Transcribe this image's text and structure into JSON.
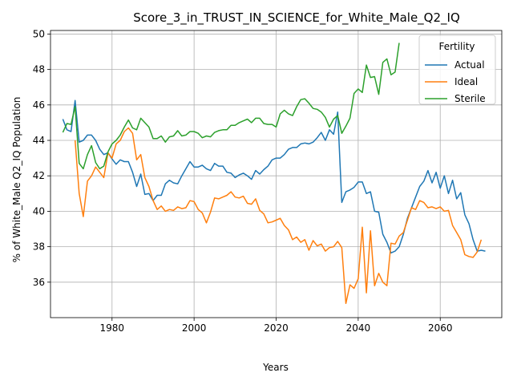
{
  "chart_data": {
    "type": "line",
    "title": "Score_3_in_TRUST_IN_SCIENCE_for_White_Male_Q2_IQ",
    "xlabel": "Years",
    "ylabel": "% of White_Male Q2_IQ Population",
    "xlim": [
      1965,
      2075
    ],
    "ylim": [
      34.0,
      50.2
    ],
    "xticks": [
      1980,
      2000,
      2020,
      2040,
      2060
    ],
    "yticks": [
      36,
      38,
      40,
      42,
      44,
      46,
      48,
      50
    ],
    "grid": true,
    "legend": {
      "title": "Fertility",
      "position": "top-right"
    },
    "series": [
      {
        "name": "Actual",
        "color": "#1f77b4",
        "points": [
          [
            1968,
            45.2
          ],
          [
            1969,
            44.6
          ],
          [
            1970,
            44.5
          ],
          [
            1971,
            46.25
          ],
          [
            1972,
            43.9
          ],
          [
            1973,
            44.0
          ],
          [
            1974,
            44.3
          ],
          [
            1975,
            44.3
          ],
          [
            1976,
            44.0
          ],
          [
            1977,
            43.5
          ],
          [
            1978,
            43.2
          ],
          [
            1979,
            43.3
          ],
          [
            1980,
            42.95
          ],
          [
            1981,
            42.65
          ],
          [
            1982,
            42.9
          ],
          [
            1983,
            42.8
          ],
          [
            1984,
            42.8
          ],
          [
            1985,
            42.2
          ],
          [
            1986,
            41.4
          ],
          [
            1987,
            42.1
          ],
          [
            1988,
            40.95
          ],
          [
            1989,
            41.0
          ],
          [
            1990,
            40.6
          ],
          [
            1991,
            40.9
          ],
          [
            1992,
            40.9
          ],
          [
            1993,
            41.55
          ],
          [
            1994,
            41.75
          ],
          [
            1995,
            41.6
          ],
          [
            1996,
            41.55
          ],
          [
            1997,
            42.0
          ],
          [
            1998,
            42.4
          ],
          [
            1999,
            42.8
          ],
          [
            2000,
            42.5
          ],
          [
            2001,
            42.5
          ],
          [
            2002,
            42.6
          ],
          [
            2003,
            42.4
          ],
          [
            2004,
            42.3
          ],
          [
            2005,
            42.7
          ],
          [
            2006,
            42.55
          ],
          [
            2007,
            42.55
          ],
          [
            2008,
            42.2
          ],
          [
            2009,
            42.15
          ],
          [
            2010,
            41.9
          ],
          [
            2011,
            42.05
          ],
          [
            2012,
            42.15
          ],
          [
            2013,
            42.0
          ],
          [
            2014,
            41.8
          ],
          [
            2015,
            42.3
          ],
          [
            2016,
            42.1
          ],
          [
            2017,
            42.35
          ],
          [
            2018,
            42.55
          ],
          [
            2019,
            42.9
          ],
          [
            2020,
            43.0
          ],
          [
            2021,
            43.0
          ],
          [
            2022,
            43.2
          ],
          [
            2023,
            43.5
          ],
          [
            2024,
            43.6
          ],
          [
            2025,
            43.6
          ],
          [
            2026,
            43.8
          ],
          [
            2027,
            43.85
          ],
          [
            2028,
            43.8
          ],
          [
            2029,
            43.9
          ],
          [
            2030,
            44.15
          ],
          [
            2031,
            44.45
          ],
          [
            2032,
            44.0
          ],
          [
            2033,
            44.6
          ],
          [
            2034,
            44.35
          ],
          [
            2035,
            45.6
          ],
          [
            2036,
            40.5
          ],
          [
            2037,
            41.1
          ],
          [
            2038,
            41.2
          ],
          [
            2039,
            41.35
          ],
          [
            2040,
            41.65
          ],
          [
            2041,
            41.65
          ],
          [
            2042,
            41.0
          ],
          [
            2043,
            41.1
          ],
          [
            2044,
            40.0
          ],
          [
            2045,
            39.95
          ],
          [
            2046,
            38.7
          ],
          [
            2047,
            38.25
          ],
          [
            2048,
            37.65
          ],
          [
            2049,
            37.75
          ],
          [
            2050,
            38.0
          ],
          [
            2051,
            38.7
          ],
          [
            2052,
            39.6
          ],
          [
            2053,
            40.2
          ],
          [
            2054,
            40.8
          ],
          [
            2055,
            41.4
          ],
          [
            2056,
            41.7
          ],
          [
            2057,
            42.3
          ],
          [
            2058,
            41.6
          ],
          [
            2059,
            42.2
          ],
          [
            2060,
            41.3
          ],
          [
            2061,
            42.0
          ],
          [
            2062,
            41.0
          ],
          [
            2063,
            41.75
          ],
          [
            2064,
            40.7
          ],
          [
            2065,
            41.05
          ],
          [
            2066,
            39.8
          ],
          [
            2067,
            39.3
          ],
          [
            2068,
            38.4
          ],
          [
            2069,
            37.75
          ],
          [
            2070,
            37.8
          ],
          [
            2071,
            37.75
          ]
        ]
      },
      {
        "name": "Ideal",
        "color": "#ff7f0e",
        "points": [
          [
            1971,
            44.0
          ],
          [
            1972,
            41.0
          ],
          [
            1973,
            39.7
          ],
          [
            1974,
            41.7
          ],
          [
            1975,
            42.0
          ],
          [
            1976,
            42.5
          ],
          [
            1977,
            42.2
          ],
          [
            1978,
            41.9
          ],
          [
            1979,
            43.3
          ],
          [
            1980,
            43.0
          ],
          [
            1981,
            43.8
          ],
          [
            1982,
            44.0
          ],
          [
            1983,
            44.5
          ],
          [
            1984,
            44.7
          ],
          [
            1985,
            44.4
          ],
          [
            1986,
            42.9
          ],
          [
            1987,
            43.2
          ],
          [
            1988,
            41.9
          ],
          [
            1989,
            41.4
          ],
          [
            1990,
            40.6
          ],
          [
            1991,
            40.1
          ],
          [
            1992,
            40.3
          ],
          [
            1993,
            40.0
          ],
          [
            1994,
            40.1
          ],
          [
            1995,
            40.05
          ],
          [
            1996,
            40.25
          ],
          [
            1997,
            40.15
          ],
          [
            1998,
            40.2
          ],
          [
            1999,
            40.6
          ],
          [
            2000,
            40.55
          ],
          [
            2001,
            40.1
          ],
          [
            2002,
            39.9
          ],
          [
            2003,
            39.35
          ],
          [
            2004,
            39.95
          ],
          [
            2005,
            40.75
          ],
          [
            2006,
            40.7
          ],
          [
            2007,
            40.8
          ],
          [
            2008,
            40.9
          ],
          [
            2009,
            41.1
          ],
          [
            2010,
            40.8
          ],
          [
            2011,
            40.75
          ],
          [
            2012,
            40.85
          ],
          [
            2013,
            40.45
          ],
          [
            2014,
            40.4
          ],
          [
            2015,
            40.7
          ],
          [
            2016,
            40.05
          ],
          [
            2017,
            39.85
          ],
          [
            2018,
            39.35
          ],
          [
            2019,
            39.4
          ],
          [
            2020,
            39.5
          ],
          [
            2021,
            39.6
          ],
          [
            2022,
            39.2
          ],
          [
            2023,
            38.95
          ],
          [
            2024,
            38.4
          ],
          [
            2025,
            38.55
          ],
          [
            2026,
            38.25
          ],
          [
            2027,
            38.4
          ],
          [
            2028,
            37.8
          ],
          [
            2029,
            38.35
          ],
          [
            2030,
            38.05
          ],
          [
            2031,
            38.15
          ],
          [
            2032,
            37.75
          ],
          [
            2033,
            37.95
          ],
          [
            2034,
            38.0
          ],
          [
            2035,
            38.3
          ],
          [
            2036,
            37.95
          ],
          [
            2037,
            34.8
          ],
          [
            2038,
            35.85
          ],
          [
            2039,
            35.65
          ],
          [
            2040,
            36.2
          ],
          [
            2041,
            39.1
          ],
          [
            2042,
            35.4
          ],
          [
            2043,
            38.9
          ],
          [
            2044,
            35.8
          ],
          [
            2045,
            36.5
          ],
          [
            2046,
            36.0
          ],
          [
            2047,
            35.8
          ],
          [
            2048,
            38.2
          ],
          [
            2049,
            38.15
          ],
          [
            2050,
            38.6
          ],
          [
            2051,
            38.8
          ],
          [
            2052,
            39.5
          ],
          [
            2053,
            40.2
          ],
          [
            2054,
            40.1
          ],
          [
            2055,
            40.6
          ],
          [
            2056,
            40.5
          ],
          [
            2057,
            40.2
          ],
          [
            2058,
            40.25
          ],
          [
            2059,
            40.15
          ],
          [
            2060,
            40.25
          ],
          [
            2061,
            40.0
          ],
          [
            2062,
            40.05
          ],
          [
            2063,
            39.2
          ],
          [
            2064,
            38.8
          ],
          [
            2065,
            38.4
          ],
          [
            2066,
            37.55
          ],
          [
            2067,
            37.45
          ],
          [
            2068,
            37.4
          ],
          [
            2069,
            37.7
          ],
          [
            2070,
            38.4
          ]
        ]
      },
      {
        "name": "Sterile",
        "color": "#2ca02c",
        "points": [
          [
            1968,
            44.45
          ],
          [
            1969,
            44.95
          ],
          [
            1970,
            44.9
          ],
          [
            1971,
            45.9
          ],
          [
            1972,
            42.7
          ],
          [
            1973,
            42.4
          ],
          [
            1974,
            43.2
          ],
          [
            1975,
            43.7
          ],
          [
            1976,
            42.75
          ],
          [
            1977,
            42.4
          ],
          [
            1978,
            42.55
          ],
          [
            1979,
            43.35
          ],
          [
            1980,
            43.8
          ],
          [
            1981,
            44.0
          ],
          [
            1982,
            44.3
          ],
          [
            1983,
            44.75
          ],
          [
            1984,
            45.15
          ],
          [
            1985,
            44.7
          ],
          [
            1986,
            44.6
          ],
          [
            1987,
            45.25
          ],
          [
            1988,
            45.0
          ],
          [
            1989,
            44.75
          ],
          [
            1990,
            44.1
          ],
          [
            1991,
            44.1
          ],
          [
            1992,
            44.25
          ],
          [
            1993,
            43.9
          ],
          [
            1994,
            44.2
          ],
          [
            1995,
            44.25
          ],
          [
            1996,
            44.55
          ],
          [
            1997,
            44.25
          ],
          [
            1998,
            44.3
          ],
          [
            1999,
            44.5
          ],
          [
            2000,
            44.5
          ],
          [
            2001,
            44.4
          ],
          [
            2002,
            44.15
          ],
          [
            2003,
            44.25
          ],
          [
            2004,
            44.2
          ],
          [
            2005,
            44.45
          ],
          [
            2006,
            44.55
          ],
          [
            2007,
            44.6
          ],
          [
            2008,
            44.6
          ],
          [
            2009,
            44.85
          ],
          [
            2010,
            44.85
          ],
          [
            2011,
            45.0
          ],
          [
            2012,
            45.1
          ],
          [
            2013,
            45.2
          ],
          [
            2014,
            45.0
          ],
          [
            2015,
            45.25
          ],
          [
            2016,
            45.25
          ],
          [
            2017,
            44.95
          ],
          [
            2018,
            44.9
          ],
          [
            2019,
            44.9
          ],
          [
            2020,
            44.75
          ],
          [
            2021,
            45.5
          ],
          [
            2022,
            45.7
          ],
          [
            2023,
            45.5
          ],
          [
            2024,
            45.4
          ],
          [
            2025,
            45.9
          ],
          [
            2026,
            46.3
          ],
          [
            2027,
            46.35
          ],
          [
            2028,
            46.1
          ],
          [
            2029,
            45.8
          ],
          [
            2030,
            45.75
          ],
          [
            2031,
            45.6
          ],
          [
            2032,
            45.3
          ],
          [
            2033,
            44.75
          ],
          [
            2034,
            45.2
          ],
          [
            2035,
            45.4
          ],
          [
            2036,
            44.4
          ],
          [
            2037,
            44.8
          ],
          [
            2038,
            45.25
          ],
          [
            2039,
            46.65
          ],
          [
            2040,
            46.9
          ],
          [
            2041,
            46.7
          ],
          [
            2042,
            48.25
          ],
          [
            2043,
            47.55
          ],
          [
            2044,
            47.6
          ],
          [
            2045,
            46.6
          ],
          [
            2046,
            48.4
          ],
          [
            2047,
            48.6
          ],
          [
            2048,
            47.7
          ],
          [
            2049,
            47.85
          ],
          [
            2050,
            49.5
          ]
        ]
      }
    ]
  }
}
